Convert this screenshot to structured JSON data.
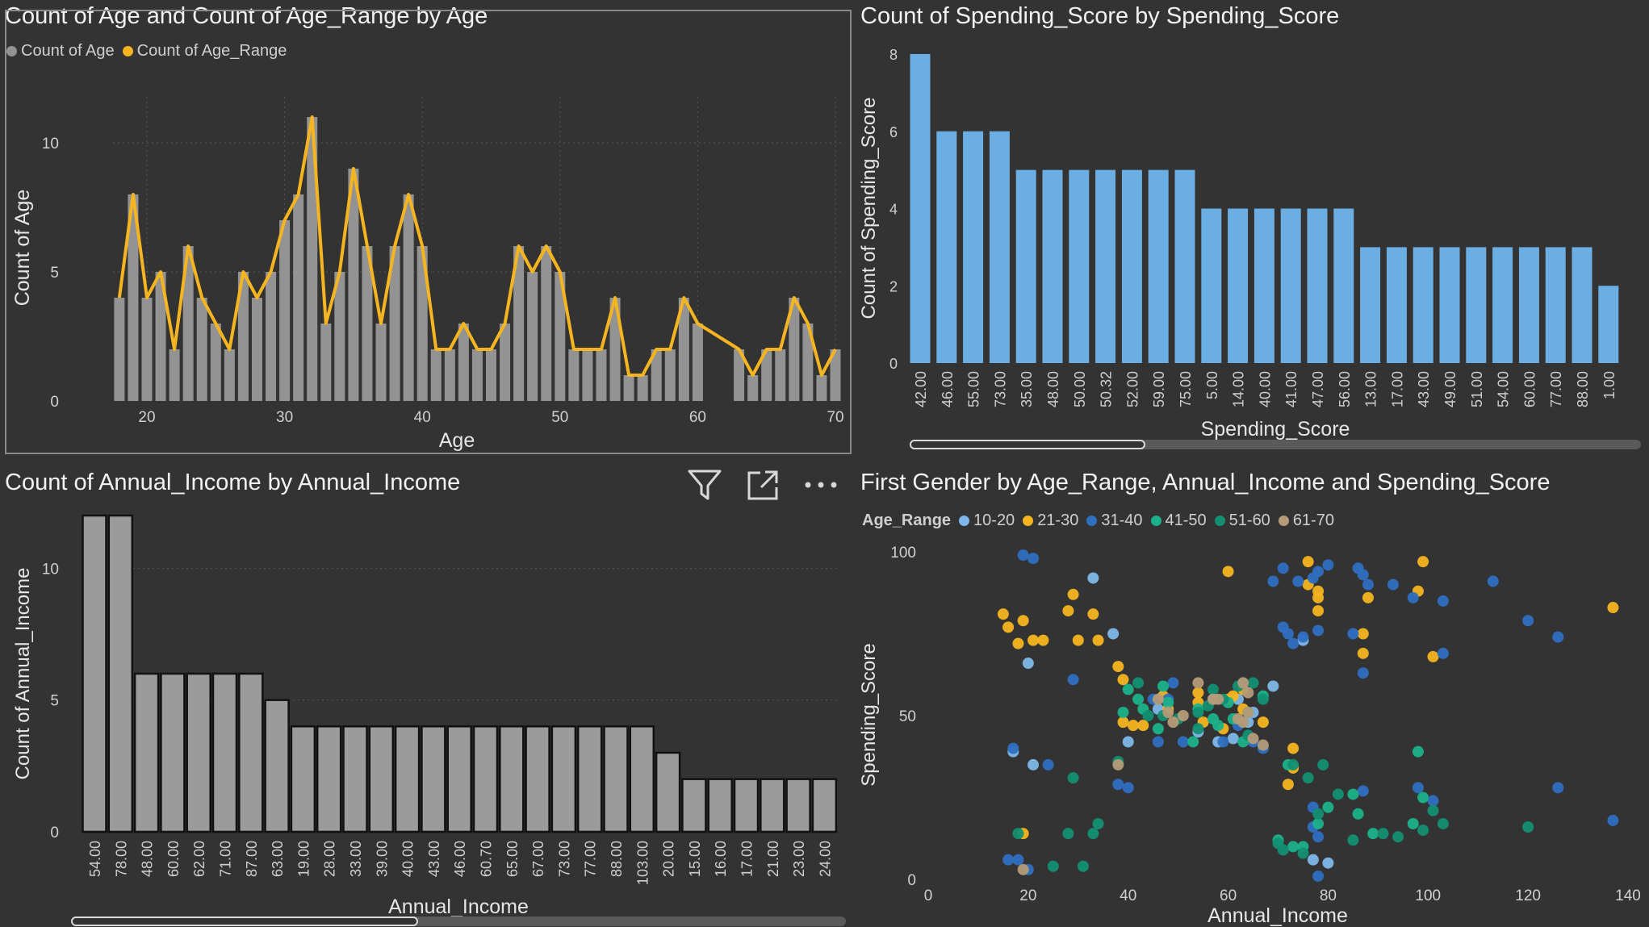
{
  "colors": {
    "background": "#333333",
    "gray_bar": "#939393",
    "gold_line": "#F5B521",
    "blue_bar": "#6AAEE3",
    "income_bar": "#9B9B9B"
  },
  "panel1": {
    "title": "Count of Age and Count of Age_Range by Age",
    "legend": [
      {
        "label": "Count of Age",
        "color": "#939393"
      },
      {
        "label": "Count of Age_Range",
        "color": "#F5B521"
      }
    ]
  },
  "panel2": {
    "title": "Count of Spending_Score by Spending_Score"
  },
  "panel3": {
    "title": "Count of Annual_Income by Annual_Income",
    "icons": [
      "filter-icon",
      "focus-mode-icon",
      "more-options-icon"
    ]
  },
  "panel4": {
    "title": "First Gender by Age_Range, Annual_Income and Spending_Score",
    "legend_title": "Age_Range",
    "legend": [
      {
        "label": "10-20",
        "color": "#7FB8E8"
      },
      {
        "label": "21-30",
        "color": "#F5B521"
      },
      {
        "label": "31-40",
        "color": "#2F6FC0"
      },
      {
        "label": "41-50",
        "color": "#1BB28A"
      },
      {
        "label": "51-60",
        "color": "#138F72"
      },
      {
        "label": "61-70",
        "color": "#B59B78"
      }
    ]
  },
  "chart_data": [
    {
      "type": "bar+line",
      "title": "Count of Age and Count of Age_Range by Age",
      "xlabel": "Age",
      "ylabel": "Count of Age",
      "xlim": [
        17,
        70
      ],
      "ylim": [
        0,
        11
      ],
      "xticks": [
        20,
        30,
        40,
        50,
        60,
        70
      ],
      "yticks": [
        0,
        5,
        10
      ],
      "grid": true,
      "legend_position": "top-left",
      "x": [
        18,
        19,
        20,
        21,
        22,
        23,
        24,
        25,
        26,
        27,
        28,
        29,
        30,
        31,
        32,
        33,
        34,
        35,
        36,
        37,
        38,
        39,
        40,
        41,
        42,
        43,
        44,
        45,
        46,
        47,
        48,
        49,
        50,
        51,
        52,
        53,
        54,
        55,
        56,
        57,
        58,
        59,
        60,
        63,
        64,
        65,
        66,
        67,
        68,
        69,
        70
      ],
      "series": [
        {
          "name": "Count of Age",
          "values": [
            4,
            8,
            4,
            5,
            2,
            6,
            4,
            3,
            2,
            5,
            4,
            5,
            7,
            8,
            11,
            3,
            5,
            9,
            6,
            3,
            6,
            8,
            6,
            2,
            2,
            3,
            2,
            2,
            3,
            6,
            5,
            6,
            5,
            2,
            2,
            2,
            4,
            1,
            1,
            2,
            2,
            4,
            3,
            2,
            1,
            2,
            2,
            4,
            3,
            1,
            2
          ]
        },
        {
          "name": "Count of Age_Range",
          "values": [
            4,
            8,
            4,
            5,
            2,
            6,
            4,
            3,
            2,
            5,
            4,
            5,
            7,
            8,
            11,
            3,
            5,
            9,
            6,
            3,
            6,
            8,
            6,
            2,
            2,
            3,
            2,
            2,
            3,
            6,
            5,
            6,
            5,
            2,
            2,
            2,
            4,
            1,
            1,
            2,
            2,
            4,
            3,
            2,
            1,
            2,
            2,
            4,
            3,
            1,
            2
          ]
        }
      ]
    },
    {
      "type": "bar",
      "title": "Count of Spending_Score by Spending_Score",
      "xlabel": "Spending_Score",
      "ylabel": "Count of Spending_Score",
      "ylim": [
        0,
        8
      ],
      "yticks": [
        0,
        2,
        4,
        6,
        8
      ],
      "categories": [
        "42.00",
        "46.00",
        "55.00",
        "73.00",
        "35.00",
        "48.00",
        "50.00",
        "50.32",
        "52.00",
        "59.00",
        "75.00",
        "5.00",
        "14.00",
        "40.00",
        "41.00",
        "47.00",
        "56.00",
        "13.00",
        "17.00",
        "43.00",
        "49.00",
        "51.00",
        "54.00",
        "60.00",
        "77.00",
        "88.00",
        "1.00"
      ],
      "values": [
        8,
        6,
        6,
        6,
        5,
        5,
        5,
        5,
        5,
        5,
        5,
        4,
        4,
        4,
        4,
        4,
        4,
        3,
        3,
        3,
        3,
        3,
        3,
        3,
        3,
        3,
        2
      ]
    },
    {
      "type": "bar",
      "title": "Count of Annual_Income by Annual_Income",
      "xlabel": "Annual_Income",
      "ylabel": "Count of Annual_Income",
      "ylim": [
        0,
        12
      ],
      "yticks": [
        0,
        5,
        10
      ],
      "categories": [
        "54.00",
        "78.00",
        "48.00",
        "60.00",
        "62.00",
        "71.00",
        "87.00",
        "63.00",
        "19.00",
        "28.00",
        "33.00",
        "39.00",
        "40.00",
        "43.00",
        "46.00",
        "60.70",
        "65.00",
        "67.00",
        "73.00",
        "77.00",
        "88.00",
        "103.00",
        "20.00",
        "15.00",
        "16.00",
        "17.00",
        "21.00",
        "23.00",
        "24.00"
      ],
      "values": [
        12,
        12,
        6,
        6,
        6,
        6,
        6,
        5,
        4,
        4,
        4,
        4,
        4,
        4,
        4,
        4,
        4,
        4,
        4,
        4,
        4,
        4,
        3,
        2,
        2,
        2,
        2,
        2,
        2
      ]
    },
    {
      "type": "scatter",
      "title": "First Gender by Age_Range, Annual_Income and Spending_Score",
      "xlabel": "Annual_Income",
      "ylabel": "Spending_Score",
      "xlim": [
        0,
        140
      ],
      "ylim": [
        0,
        100
      ],
      "xticks": [
        0,
        20,
        40,
        60,
        80,
        100,
        120,
        140
      ],
      "yticks": [
        0,
        50,
        100
      ],
      "legend_position": "top-left",
      "series": [
        {
          "name": "10-20",
          "points": [
            [
              17,
              39
            ],
            [
              20,
              66
            ],
            [
              21,
              35
            ],
            [
              33,
              92
            ],
            [
              37,
              75
            ],
            [
              40,
              42
            ],
            [
              46,
              52
            ],
            [
              54,
              45
            ],
            [
              58,
              42
            ],
            [
              61,
              43
            ],
            [
              62,
              55
            ],
            [
              64,
              48
            ],
            [
              65,
              51
            ],
            [
              77,
              6
            ],
            [
              80,
              5
            ],
            [
              69,
              59
            ],
            [
              75,
              73
            ],
            [
              57,
              55
            ]
          ]
        },
        {
          "name": "21-30",
          "points": [
            [
              15,
              81
            ],
            [
              16,
              77
            ],
            [
              18,
              72
            ],
            [
              19,
              79
            ],
            [
              19,
              14
            ],
            [
              21,
              73
            ],
            [
              23,
              73
            ],
            [
              28,
              82
            ],
            [
              29,
              87
            ],
            [
              30,
              73
            ],
            [
              33,
              81
            ],
            [
              34,
              73
            ],
            [
              38,
              65
            ],
            [
              39,
              61
            ],
            [
              39,
              48
            ],
            [
              41,
              47
            ],
            [
              43,
              47
            ],
            [
              47,
              56
            ],
            [
              48,
              52
            ],
            [
              54,
              54
            ],
            [
              54,
              57
            ],
            [
              55,
              48
            ],
            [
              59,
              46
            ],
            [
              60,
              55
            ],
            [
              60,
              94
            ],
            [
              61,
              56
            ],
            [
              63,
              52
            ],
            [
              67,
              48
            ],
            [
              72,
              29
            ],
            [
              73,
              34
            ],
            [
              73,
              40
            ],
            [
              76,
              90
            ],
            [
              76,
              97
            ],
            [
              78,
              88
            ],
            [
              78,
              82
            ],
            [
              78,
              86
            ],
            [
              87,
              69
            ],
            [
              87,
              75
            ],
            [
              88,
              86
            ],
            [
              98,
              88
            ],
            [
              99,
              97
            ],
            [
              101,
              68
            ],
            [
              137,
              83
            ],
            [
              63,
              58
            ]
          ]
        },
        {
          "name": "31-40",
          "points": [
            [
              19,
              99
            ],
            [
              21,
              98
            ],
            [
              16,
              6
            ],
            [
              17,
              40
            ],
            [
              18,
              6
            ],
            [
              20,
              3
            ],
            [
              24,
              35
            ],
            [
              29,
              61
            ],
            [
              38,
              29
            ],
            [
              40,
              28
            ],
            [
              45,
              55
            ],
            [
              46,
              42
            ],
            [
              49,
              60
            ],
            [
              51,
              42
            ],
            [
              59,
              42
            ],
            [
              62,
              47
            ],
            [
              65,
              42
            ],
            [
              67,
              40
            ],
            [
              69,
              91
            ],
            [
              71,
              95
            ],
            [
              71,
              77
            ],
            [
              72,
              75
            ],
            [
              73,
              72
            ],
            [
              74,
              91
            ],
            [
              75,
              74
            ],
            [
              77,
              92
            ],
            [
              77,
              16
            ],
            [
              77,
              22
            ],
            [
              78,
              1
            ],
            [
              78,
              13
            ],
            [
              78,
              94
            ],
            [
              78,
              76
            ],
            [
              80,
              96
            ],
            [
              85,
              75
            ],
            [
              86,
              95
            ],
            [
              87,
              63
            ],
            [
              87,
              93
            ],
            [
              87,
              27
            ],
            [
              88,
              90
            ],
            [
              93,
              90
            ],
            [
              97,
              86
            ],
            [
              98,
              28
            ],
            [
              101,
              24
            ],
            [
              103,
              85
            ],
            [
              103,
              69
            ],
            [
              113,
              91
            ],
            [
              120,
              79
            ],
            [
              126,
              74
            ],
            [
              126,
              28
            ],
            [
              137,
              18
            ],
            [
              63,
              60
            ],
            [
              48,
              55
            ]
          ]
        },
        {
          "name": "41-50",
          "points": [
            [
              39,
              51
            ],
            [
              40,
              58
            ],
            [
              42,
              55
            ],
            [
              43,
              52
            ],
            [
              46,
              46
            ],
            [
              47,
              59
            ],
            [
              48,
              54
            ],
            [
              53,
              42
            ],
            [
              54,
              52
            ],
            [
              58,
              47
            ],
            [
              61,
              49
            ],
            [
              63,
              42
            ],
            [
              64,
              51
            ],
            [
              67,
              56
            ],
            [
              70,
              12
            ],
            [
              72,
              35
            ],
            [
              73,
              10
            ],
            [
              75,
              10
            ],
            [
              78,
              17
            ],
            [
              80,
              22
            ],
            [
              85,
              26
            ],
            [
              86,
              20
            ],
            [
              89,
              14
            ],
            [
              97,
              17
            ],
            [
              98,
              39
            ],
            [
              99,
              25
            ],
            [
              57,
              49
            ],
            [
              60,
              54
            ]
          ]
        },
        {
          "name": "51-60",
          "points": [
            [
              18,
              14
            ],
            [
              25,
              4
            ],
            [
              28,
              14
            ],
            [
              29,
              31
            ],
            [
              31,
              4
            ],
            [
              33,
              14
            ],
            [
              34,
              17
            ],
            [
              38,
              36
            ],
            [
              42,
              60
            ],
            [
              44,
              50
            ],
            [
              47,
              50
            ],
            [
              50,
              49
            ],
            [
              54,
              46
            ],
            [
              54,
              51
            ],
            [
              57,
              58
            ],
            [
              59,
              55
            ],
            [
              62,
              59
            ],
            [
              65,
              60
            ],
            [
              67,
              55
            ],
            [
              70,
              11
            ],
            [
              71,
              9
            ],
            [
              73,
              35
            ],
            [
              75,
              8
            ],
            [
              76,
              31
            ],
            [
              78,
              20
            ],
            [
              79,
              35
            ],
            [
              82,
              26
            ],
            [
              85,
              12
            ],
            [
              91,
              14
            ],
            [
              94,
              13
            ],
            [
              99,
              15
            ],
            [
              101,
              21
            ],
            [
              103,
              17
            ],
            [
              120,
              16
            ],
            [
              64,
              44
            ],
            [
              56,
              53
            ]
          ]
        },
        {
          "name": "61-70",
          "points": [
            [
              19,
              3
            ],
            [
              38,
              35
            ],
            [
              46,
              55
            ],
            [
              48,
              51
            ],
            [
              49,
              48
            ],
            [
              54,
              60
            ],
            [
              57,
              55
            ],
            [
              58,
              55
            ],
            [
              62,
              49
            ],
            [
              63,
              48
            ],
            [
              63,
              60
            ],
            [
              64,
              51
            ],
            [
              65,
              43
            ],
            [
              67,
              41
            ],
            [
              51,
              50
            ],
            [
              64,
              57
            ]
          ]
        }
      ]
    }
  ]
}
